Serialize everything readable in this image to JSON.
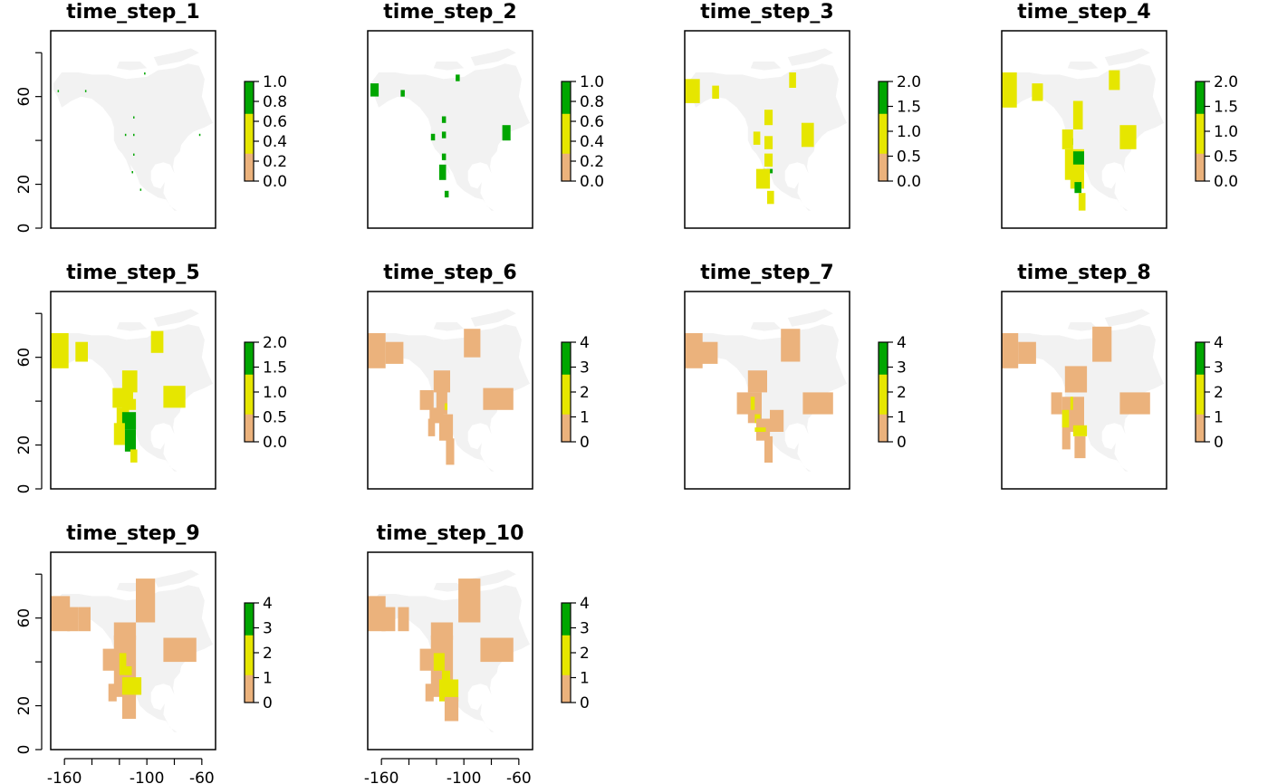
{
  "chart_data": {
    "type": "heatmap",
    "background_color": "#f2f2f2",
    "frame_color": "#000000",
    "axes": {
      "y_ticks": [
        0,
        20,
        60
      ],
      "y_minor": [
        40,
        80
      ],
      "x_ticks": [
        -160,
        -100,
        -60
      ],
      "x_minor": [
        -140,
        -120,
        -80
      ],
      "xlim": [
        -170,
        -50
      ],
      "ylim": [
        0,
        90
      ]
    },
    "legend_colors": {
      "zero": "#ffffff",
      "low": "#ebb27c",
      "mid": "#e6e600",
      "high": "#00a600"
    },
    "panels": [
      {
        "title": "time_step_1",
        "legend_labels": [
          "1.0",
          "0.8",
          "0.6",
          "0.4",
          "0.2",
          "0.0"
        ],
        "max": 1,
        "cells": [
          [
            -165,
            62,
            1,
            1,
            1
          ],
          [
            -145,
            62,
            1,
            1,
            1
          ],
          [
            -102,
            70,
            1,
            1,
            1
          ],
          [
            -110,
            50,
            1,
            1,
            1
          ],
          [
            -116,
            42,
            1,
            1,
            1
          ],
          [
            -110,
            42,
            1,
            1,
            1
          ],
          [
            -110,
            33,
            1,
            1,
            1
          ],
          [
            -111,
            25,
            1,
            1,
            1
          ],
          [
            -105,
            17,
            1,
            1,
            1
          ],
          [
            -62,
            42,
            1,
            1,
            1
          ]
        ]
      },
      {
        "title": "time_step_2",
        "legend_labels": [
          "1.0",
          "0.8",
          "0.6",
          "0.4",
          "0.2",
          "0.0"
        ],
        "max": 1,
        "cells": [
          [
            -168,
            60,
            6,
            6,
            1
          ],
          [
            -146,
            60,
            3,
            3,
            1
          ],
          [
            -106,
            67,
            3,
            3,
            1
          ],
          [
            -116,
            48,
            3,
            3,
            1
          ],
          [
            -116,
            41,
            3,
            3,
            1
          ],
          [
            -124,
            40,
            3,
            3,
            1
          ],
          [
            -116,
            31,
            3,
            3,
            1
          ],
          [
            -118,
            22,
            5,
            7,
            1
          ],
          [
            -114,
            14,
            3,
            3,
            1
          ],
          [
            -72,
            40,
            6,
            7,
            1
          ]
        ]
      },
      {
        "title": "time_step_3",
        "legend_labels": [
          "2.0",
          "1.5",
          "1.0",
          "0.5",
          "0.0"
        ],
        "max": 2,
        "cells": [
          [
            -170,
            57,
            11,
            11,
            1
          ],
          [
            -150,
            59,
            5,
            6,
            1
          ],
          [
            -94,
            64,
            5,
            7,
            1
          ],
          [
            -112,
            47,
            6,
            7,
            1
          ],
          [
            -120,
            38,
            5,
            6,
            1
          ],
          [
            -112,
            36,
            6,
            6,
            1
          ],
          [
            -85,
            37,
            9,
            11,
            1
          ],
          [
            -112,
            28,
            6,
            6,
            1
          ],
          [
            -113,
            25,
            7,
            2,
            2
          ],
          [
            -118,
            18,
            10,
            9,
            1
          ],
          [
            -110,
            11,
            5,
            6,
            1
          ]
        ]
      },
      {
        "title": "time_step_4",
        "legend_labels": [
          "2.0",
          "1.5",
          "1.0",
          "0.5",
          "0.0"
        ],
        "max": 2,
        "cells": [
          [
            -170,
            55,
            11,
            16,
            1
          ],
          [
            -148,
            58,
            8,
            8,
            1
          ],
          [
            -92,
            63,
            8,
            9,
            1
          ],
          [
            -118,
            45,
            7,
            13,
            1
          ],
          [
            -120,
            38,
            2,
            3,
            2
          ],
          [
            -126,
            36,
            8,
            9,
            1
          ],
          [
            -84,
            36,
            12,
            11,
            1
          ],
          [
            -120,
            18,
            10,
            18,
            1
          ],
          [
            -124,
            22,
            6,
            14,
            1
          ],
          [
            -118,
            29,
            8,
            6,
            2
          ],
          [
            -117,
            16,
            5,
            5,
            2
          ],
          [
            -114,
            8,
            5,
            8,
            1
          ]
        ]
      },
      {
        "title": "time_step_5",
        "legend_labels": [
          "2.0",
          "1.5",
          "1.0",
          "0.5",
          "0.0"
        ],
        "max": 2,
        "cells": [
          [
            -170,
            55,
            13,
            16,
            1
          ],
          [
            -152,
            58,
            9,
            9,
            1
          ],
          [
            -97,
            62,
            9,
            10,
            1
          ],
          [
            -118,
            44,
            11,
            10,
            1
          ],
          [
            -125,
            37,
            11,
            9,
            1
          ],
          [
            -114,
            37,
            4,
            9,
            1
          ],
          [
            -118,
            36,
            10,
            5,
            1
          ],
          [
            -88,
            37,
            16,
            10,
            1
          ],
          [
            -122,
            29,
            9,
            8,
            1
          ],
          [
            -118,
            27,
            10,
            8,
            2
          ],
          [
            -124,
            20,
            8,
            10,
            1
          ],
          [
            -116,
            17,
            8,
            10,
            2
          ],
          [
            -112,
            12,
            5,
            6,
            1
          ]
        ]
      },
      {
        "title": "time_step_6",
        "legend_labels": [
          "4",
          "3",
          "2",
          "1",
          "0"
        ],
        "max": 4,
        "cells": [
          [
            -170,
            55,
            13,
            16,
            0.5
          ],
          [
            -157,
            57,
            13,
            10,
            0.5
          ],
          [
            -100,
            60,
            12,
            13,
            0.5
          ],
          [
            -122,
            44,
            12,
            10,
            0.5
          ],
          [
            -132,
            36,
            10,
            9,
            0.5
          ],
          [
            -125,
            30,
            10,
            7,
            0.5
          ],
          [
            -86,
            36,
            22,
            10,
            0.5
          ],
          [
            -120,
            34,
            8,
            11,
            1
          ],
          [
            -118,
            22,
            10,
            12,
            1
          ],
          [
            -126,
            24,
            5,
            8,
            0.5
          ],
          [
            -113,
            11,
            6,
            12,
            1
          ],
          [
            -114,
            36,
            2,
            3,
            2
          ]
        ]
      },
      {
        "title": "time_step_7",
        "legend_labels": [
          "4",
          "3",
          "2",
          "1",
          "0"
        ],
        "max": 4,
        "cells": [
          [
            -170,
            55,
            13,
            16,
            0.5
          ],
          [
            -159,
            57,
            13,
            10,
            0.5
          ],
          [
            -100,
            58,
            14,
            15,
            0.5
          ],
          [
            -124,
            44,
            14,
            10,
            0.5
          ],
          [
            -132,
            34,
            10,
            10,
            0.5
          ],
          [
            -84,
            34,
            22,
            10,
            0.5
          ],
          [
            -108,
            26,
            10,
            10,
            0.5
          ],
          [
            -124,
            30,
            10,
            14,
            1
          ],
          [
            -122,
            36,
            3,
            6,
            2
          ],
          [
            -119,
            30,
            4,
            4,
            2
          ],
          [
            -118,
            22,
            10,
            10,
            1
          ],
          [
            -112,
            12,
            6,
            12,
            1
          ],
          [
            -119,
            26,
            8,
            2,
            2
          ]
        ]
      },
      {
        "title": "time_step_8",
        "legend_labels": [
          "4",
          "3",
          "2",
          "1",
          "0"
        ],
        "max": 4,
        "cells": [
          [
            -170,
            55,
            12,
            16,
            0.5
          ],
          [
            -158,
            57,
            13,
            10,
            0.5
          ],
          [
            -162,
            57,
            3,
            12,
            1
          ],
          [
            -104,
            58,
            14,
            16,
            0.5
          ],
          [
            -124,
            44,
            16,
            12,
            0.5
          ],
          [
            -134,
            34,
            8,
            10,
            0.5
          ],
          [
            -84,
            34,
            22,
            10,
            0.5
          ],
          [
            -126,
            26,
            16,
            16,
            1
          ],
          [
            -126,
            28,
            5,
            8,
            2
          ],
          [
            -118,
            24,
            10,
            5,
            2
          ],
          [
            -120,
            36,
            2,
            6,
            2
          ],
          [
            -117,
            14,
            8,
            10,
            1
          ],
          [
            -126,
            18,
            6,
            8,
            1
          ]
        ]
      },
      {
        "title": "time_step_9",
        "legend_labels": [
          "4",
          "3",
          "2",
          "1",
          "0"
        ],
        "max": 4,
        "cells": [
          [
            -170,
            54,
            14,
            16,
            0.5
          ],
          [
            -158,
            54,
            8,
            11,
            1
          ],
          [
            -150,
            54,
            9,
            11,
            0.5
          ],
          [
            -108,
            58,
            14,
            20,
            0.5
          ],
          [
            -124,
            50,
            16,
            8,
            0.5
          ],
          [
            -88,
            40,
            24,
            11,
            0.5
          ],
          [
            -132,
            36,
            12,
            10,
            0.5
          ],
          [
            -124,
            24,
            16,
            28,
            1
          ],
          [
            -120,
            34,
            5,
            10,
            2
          ],
          [
            -116,
            34,
            5,
            4,
            2
          ],
          [
            -118,
            25,
            14,
            8,
            2
          ],
          [
            -118,
            14,
            10,
            11,
            1
          ],
          [
            -128,
            22,
            6,
            8,
            1
          ]
        ]
      },
      {
        "title": "time_step_10",
        "legend_labels": [
          "4",
          "3",
          "2",
          "1",
          "0"
        ],
        "max": 4,
        "cells": [
          [
            -170,
            54,
            13,
            16,
            0.5
          ],
          [
            -160,
            54,
            10,
            11,
            1
          ],
          [
            -148,
            54,
            8,
            11,
            0.5
          ],
          [
            -104,
            58,
            16,
            20,
            0.5
          ],
          [
            -124,
            50,
            16,
            8,
            0.5
          ],
          [
            -88,
            40,
            24,
            11,
            0.5
          ],
          [
            -132,
            36,
            12,
            10,
            0.5
          ],
          [
            -124,
            24,
            16,
            28,
            1
          ],
          [
            -122,
            36,
            8,
            8,
            2
          ],
          [
            -116,
            30,
            6,
            6,
            2
          ],
          [
            -118,
            22,
            14,
            10,
            2
          ],
          [
            -114,
            13,
            10,
            11,
            1
          ],
          [
            -128,
            22,
            6,
            8,
            1
          ]
        ]
      }
    ]
  }
}
